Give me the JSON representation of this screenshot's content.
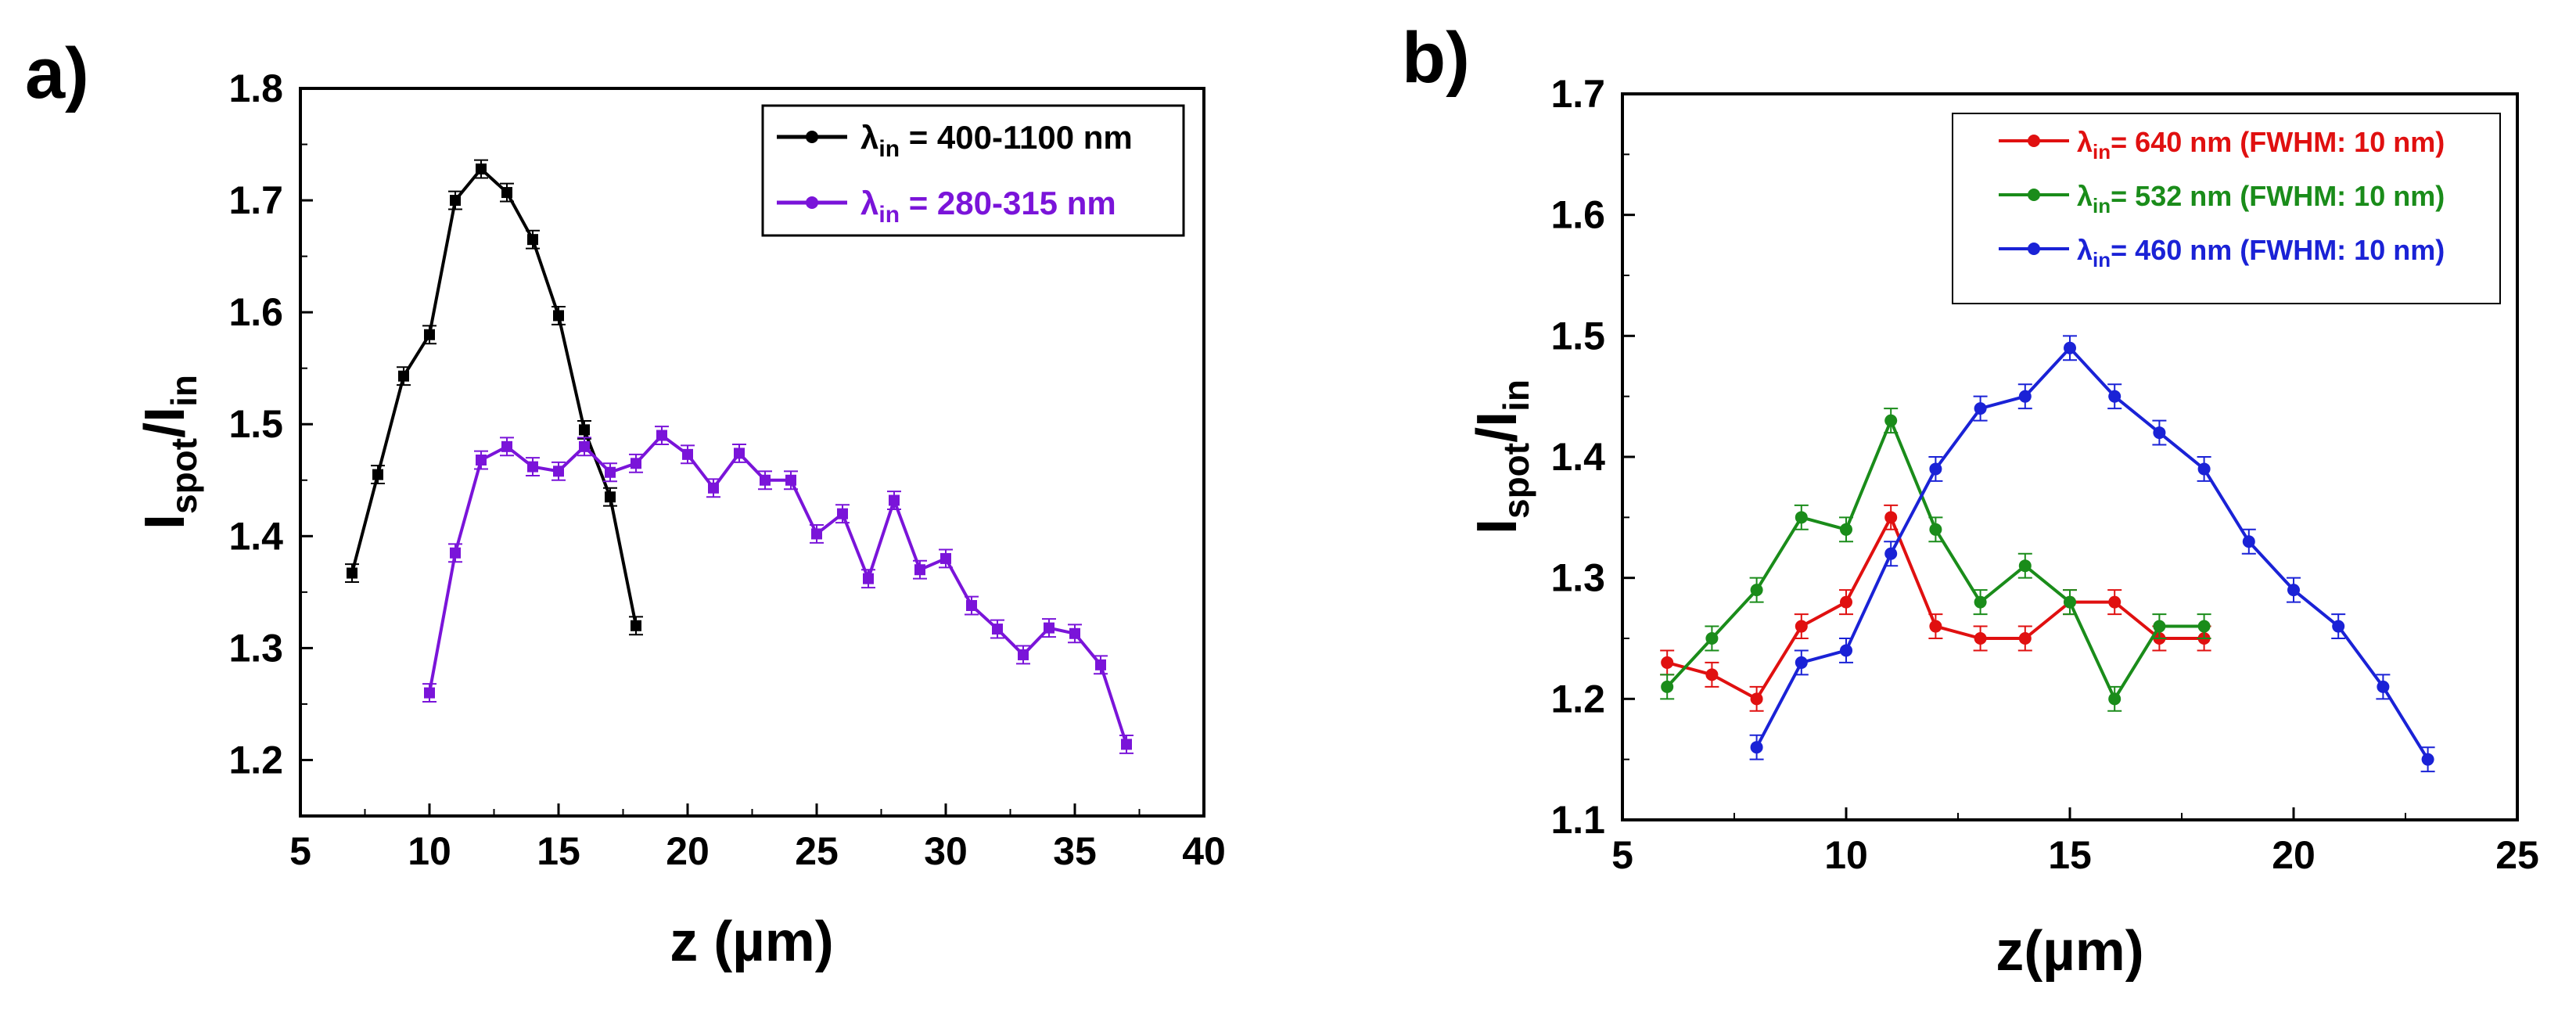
{
  "colors": {
    "black": "#000000",
    "purple": "#7a14d9",
    "red": "#e01010",
    "green": "#1a8c1a",
    "blue": "#1a22d6"
  },
  "chart_data": [
    {
      "type": "line",
      "panel_label": "a)",
      "title": "",
      "xlabel": "z (µm)",
      "ylabel_main": "I",
      "ylabel_sub1": "spot",
      "ylabel_slash": "/I",
      "ylabel_sub2": "in",
      "xlim": [
        5,
        40
      ],
      "ylim": [
        1.15,
        1.8
      ],
      "xticks": [
        5,
        10,
        15,
        20,
        25,
        30,
        35,
        40
      ],
      "xtick_labels": [
        "5",
        "10",
        "15",
        "20",
        "25",
        "30",
        "35",
        "40"
      ],
      "yticks": [
        1.2,
        1.3,
        1.4,
        1.5,
        1.6,
        1.7,
        1.8
      ],
      "ytick_labels": [
        "1.2",
        "1.3",
        "1.4",
        "1.5",
        "1.6",
        "1.7",
        "1.8"
      ],
      "legend_position": "top-right",
      "marker": "square",
      "error": 0.008,
      "series": [
        {
          "legend_symbol": "λ",
          "legend_sub": "in",
          "legend_rest": " = 400-1100 nm",
          "color": "#000000",
          "x": [
            7,
            8,
            9,
            10,
            11,
            12,
            13,
            14,
            15,
            16,
            17,
            18
          ],
          "y": [
            1.367,
            1.455,
            1.543,
            1.58,
            1.7,
            1.728,
            1.707,
            1.665,
            1.597,
            1.495,
            1.435,
            1.32
          ]
        },
        {
          "legend_symbol": "λ",
          "legend_sub": "in",
          "legend_rest": " = 280-315 nm",
          "color": "#7a14d9",
          "x": [
            10,
            11,
            12,
            13,
            14,
            15,
            16,
            17,
            18,
            19,
            20,
            21,
            22,
            23,
            24,
            25,
            26,
            27,
            28,
            29,
            30,
            31,
            32,
            33,
            34,
            35,
            36,
            37
          ],
          "y": [
            1.26,
            1.385,
            1.468,
            1.48,
            1.462,
            1.458,
            1.48,
            1.457,
            1.465,
            1.49,
            1.473,
            1.443,
            1.474,
            1.45,
            1.45,
            1.402,
            1.42,
            1.362,
            1.432,
            1.37,
            1.38,
            1.338,
            1.317,
            1.294,
            1.318,
            1.313,
            1.285,
            1.214
          ]
        }
      ]
    },
    {
      "type": "line",
      "panel_label": "b)",
      "title": "",
      "xlabel": "z(µm)",
      "ylabel_main": "I",
      "ylabel_sub1": "spot",
      "ylabel_slash": "/I",
      "ylabel_sub2": "in",
      "xlim": [
        5,
        25
      ],
      "ylim": [
        1.1,
        1.7
      ],
      "xticks": [
        5,
        10,
        15,
        20,
        25
      ],
      "xtick_labels": [
        "5",
        "10",
        "15",
        "20",
        "25"
      ],
      "yticks": [
        1.1,
        1.2,
        1.3,
        1.4,
        1.5,
        1.6,
        1.7
      ],
      "ytick_labels": [
        "1.1",
        "1.2",
        "1.3",
        "1.4",
        "1.5",
        "1.6",
        "1.7"
      ],
      "legend_position": "top-right",
      "marker": "circle",
      "error": 0.01,
      "series": [
        {
          "legend_symbol": "λ",
          "legend_sub": "in",
          "legend_rest": "= 640 nm (FWHM: 10 nm)",
          "color": "#e01010",
          "x": [
            6,
            7,
            8,
            9,
            10,
            11,
            12,
            13,
            14,
            15,
            16,
            17,
            18
          ],
          "y": [
            1.23,
            1.22,
            1.2,
            1.26,
            1.28,
            1.35,
            1.26,
            1.25,
            1.25,
            1.28,
            1.28,
            1.25,
            1.25
          ]
        },
        {
          "legend_symbol": "λ",
          "legend_sub": "in",
          "legend_rest": "= 532 nm (FWHM: 10 nm)",
          "color": "#1a8c1a",
          "x": [
            6,
            7,
            8,
            9,
            10,
            11,
            12,
            13,
            14,
            15,
            16,
            17,
            18
          ],
          "y": [
            1.21,
            1.25,
            1.29,
            1.35,
            1.34,
            1.43,
            1.34,
            1.28,
            1.31,
            1.28,
            1.2,
            1.26,
            1.26
          ]
        },
        {
          "legend_symbol": "λ",
          "legend_sub": "in",
          "legend_rest": "= 460 nm (FWHM: 10 nm)",
          "color": "#1a22d6",
          "x": [
            8,
            9,
            10,
            11,
            12,
            13,
            14,
            15,
            16,
            17,
            18,
            19,
            20,
            21,
            22,
            23
          ],
          "y": [
            1.16,
            1.23,
            1.24,
            1.32,
            1.39,
            1.44,
            1.45,
            1.49,
            1.45,
            1.42,
            1.39,
            1.33,
            1.29,
            1.26,
            1.21,
            1.15
          ]
        }
      ]
    }
  ]
}
